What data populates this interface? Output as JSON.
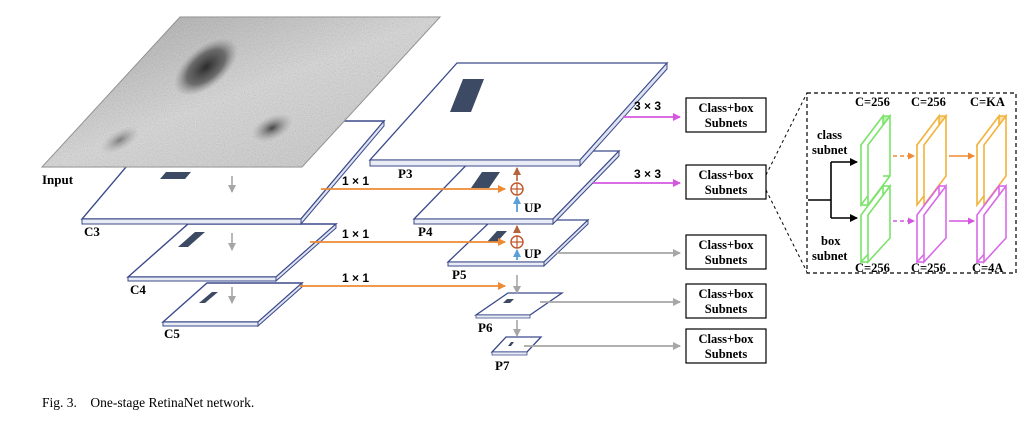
{
  "colors": {
    "plane_stroke": "#3b4a8a",
    "feature_block": "#3d4a63",
    "lateral_arrow": "#ee8a33",
    "pink_arrow": "#d457e0",
    "gray_arrow": "#a6a6a6",
    "up_arrow": "#5a9fd8",
    "sum_color": "#c0572a",
    "green_layer": "#7be36a",
    "orange_layer": "#f2b33a",
    "magenta_layer": "#d86ae8"
  },
  "backbone": {
    "input_label": "Input",
    "c3_label": "C3",
    "c4_label": "C4",
    "c5_label": "C5"
  },
  "pyramid": {
    "p3_label": "P3",
    "p4_label": "P4",
    "p5_label": "P5",
    "p6_label": "P6",
    "p7_label": "P7",
    "up_label_1": "UP",
    "up_label_2": "UP"
  },
  "operations": {
    "lateral_1": "1 × 1",
    "lateral_2": "1 × 1",
    "lateral_3": "1 × 1",
    "head_p3": "3 × 3",
    "head_p4": "3 × 3"
  },
  "subnet_boxes": [
    {
      "line1": "Class+box",
      "line2": "Subnets"
    },
    {
      "line1": "Class+box",
      "line2": "Subnets"
    },
    {
      "line1": "Class+box",
      "line2": "Subnets"
    },
    {
      "line1": "Class+box",
      "line2": "Subnets"
    },
    {
      "line1": "Class+box",
      "line2": "Subnets"
    }
  ],
  "inset": {
    "class_label_1": "class",
    "class_label_2": "subnet",
    "box_label_1": "box",
    "box_label_2": "subnet",
    "top_c1": "C=256",
    "top_c2": "C=256",
    "top_c3": "C=KA",
    "bottom_c1": "C=256",
    "bottom_c2": "C=256",
    "bottom_c3": "C=4A"
  },
  "caption": "Fig. 3.    One-stage RetinaNet network."
}
